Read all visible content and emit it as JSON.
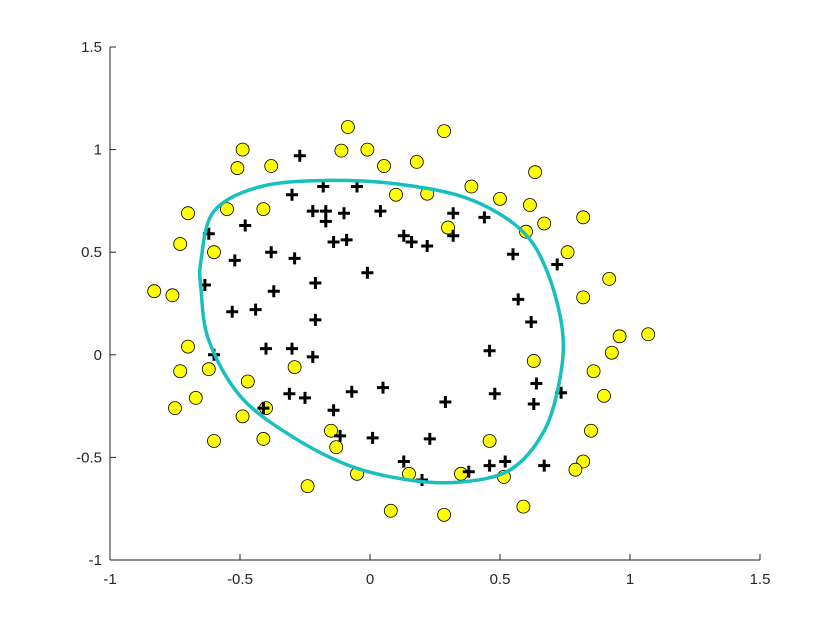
{
  "chart_data": {
    "type": "scatter",
    "title": "",
    "xlabel": "",
    "ylabel": "",
    "xlim": [
      -1,
      1.5
    ],
    "ylim": [
      -1,
      1.5
    ],
    "grid": false,
    "x_ticks": [
      "-1",
      "-0.5",
      "0",
      "0.5",
      "1",
      "1.5"
    ],
    "y_ticks": [
      "-1",
      "-0.5",
      "0",
      "0.5",
      "1",
      "1.5"
    ],
    "colors": {
      "circle_fill": "#ffff00",
      "plus": "#000000",
      "boundary": "#17bfbf",
      "axis": "#262626"
    },
    "series": [
      {
        "marker": "circle",
        "points": [
          [
            -0.085,
            1.11
          ],
          [
            0.285,
            1.09
          ],
          [
            -0.49,
            1.0
          ],
          [
            -0.11,
            0.995
          ],
          [
            -0.01,
            1.0
          ],
          [
            -0.51,
            0.91
          ],
          [
            -0.38,
            0.92
          ],
          [
            0.054,
            0.92
          ],
          [
            0.18,
            0.94
          ],
          [
            0.635,
            0.89
          ],
          [
            0.39,
            0.82
          ],
          [
            0.5,
            0.76
          ],
          [
            0.1,
            0.78
          ],
          [
            0.22,
            0.785
          ],
          [
            -0.7,
            0.69
          ],
          [
            -0.55,
            0.71
          ],
          [
            -0.41,
            0.71
          ],
          [
            0.615,
            0.73
          ],
          [
            0.67,
            0.64
          ],
          [
            0.82,
            0.67
          ],
          [
            0.6,
            0.6
          ],
          [
            0.3,
            0.62
          ],
          [
            -0.73,
            0.54
          ],
          [
            -0.6,
            0.5
          ],
          [
            0.76,
            0.5
          ],
          [
            -0.83,
            0.31
          ],
          [
            -0.76,
            0.29
          ],
          [
            0.92,
            0.37
          ],
          [
            0.82,
            0.28
          ],
          [
            1.07,
            0.1
          ],
          [
            0.96,
            0.09
          ],
          [
            0.93,
            0.01
          ],
          [
            -0.7,
            0.04
          ],
          [
            0.63,
            -0.03
          ],
          [
            -0.73,
            -0.08
          ],
          [
            -0.62,
            -0.07
          ],
          [
            -0.29,
            -0.06
          ],
          [
            0.86,
            -0.08
          ],
          [
            -0.47,
            -0.13
          ],
          [
            -0.67,
            -0.21
          ],
          [
            0.9,
            -0.2
          ],
          [
            -0.75,
            -0.26
          ],
          [
            -0.4,
            -0.26
          ],
          [
            -0.49,
            -0.3
          ],
          [
            0.85,
            -0.37
          ],
          [
            -0.15,
            -0.37
          ],
          [
            -0.6,
            -0.42
          ],
          [
            -0.41,
            -0.41
          ],
          [
            0.46,
            -0.42
          ],
          [
            -0.13,
            -0.45
          ],
          [
            0.82,
            -0.52
          ],
          [
            0.79,
            -0.56
          ],
          [
            -0.05,
            -0.58
          ],
          [
            0.15,
            -0.58
          ],
          [
            0.35,
            -0.58
          ],
          [
            0.515,
            -0.595
          ],
          [
            -0.24,
            -0.64
          ],
          [
            0.08,
            -0.76
          ],
          [
            0.285,
            -0.78
          ],
          [
            0.59,
            -0.74
          ]
        ]
      },
      {
        "marker": "plus",
        "points": [
          [
            -0.27,
            0.97
          ],
          [
            -0.18,
            0.82
          ],
          [
            -0.05,
            0.82
          ],
          [
            -0.3,
            0.78
          ],
          [
            -0.22,
            0.7
          ],
          [
            -0.17,
            0.7
          ],
          [
            -0.1,
            0.69
          ],
          [
            0.04,
            0.7
          ],
          [
            -0.17,
            0.65
          ],
          [
            0.32,
            0.69
          ],
          [
            0.44,
            0.67
          ],
          [
            -0.48,
            0.63
          ],
          [
            -0.62,
            0.59
          ],
          [
            -0.14,
            0.55
          ],
          [
            -0.09,
            0.56
          ],
          [
            0.13,
            0.58
          ],
          [
            0.16,
            0.55
          ],
          [
            0.22,
            0.53
          ],
          [
            0.32,
            0.58
          ],
          [
            -0.38,
            0.5
          ],
          [
            -0.52,
            0.46
          ],
          [
            -0.29,
            0.47
          ],
          [
            0.55,
            0.49
          ],
          [
            0.72,
            0.44
          ],
          [
            -0.01,
            0.4
          ],
          [
            -0.21,
            0.35
          ],
          [
            -0.635,
            0.34
          ],
          [
            -0.37,
            0.31
          ],
          [
            0.57,
            0.27
          ],
          [
            -0.53,
            0.21
          ],
          [
            -0.44,
            0.22
          ],
          [
            -0.21,
            0.17
          ],
          [
            0.62,
            0.16
          ],
          [
            -0.4,
            0.03
          ],
          [
            -0.3,
            0.03
          ],
          [
            -0.6,
            0.0
          ],
          [
            -0.22,
            -0.01
          ],
          [
            0.46,
            0.02
          ],
          [
            0.64,
            -0.14
          ],
          [
            0.05,
            -0.16
          ],
          [
            -0.07,
            -0.18
          ],
          [
            0.48,
            -0.19
          ],
          [
            -0.31,
            -0.19
          ],
          [
            -0.25,
            -0.21
          ],
          [
            0.735,
            -0.185
          ],
          [
            0.29,
            -0.23
          ],
          [
            0.63,
            -0.24
          ],
          [
            -0.14,
            -0.27
          ],
          [
            -0.41,
            -0.26
          ],
          [
            -0.115,
            -0.395
          ],
          [
            0.01,
            -0.405
          ],
          [
            0.23,
            -0.41
          ],
          [
            0.13,
            -0.52
          ],
          [
            0.46,
            -0.54
          ],
          [
            0.52,
            -0.52
          ],
          [
            0.67,
            -0.54
          ],
          [
            0.38,
            -0.57
          ],
          [
            0.2,
            -0.61
          ]
        ]
      },
      {
        "marker": "line",
        "closed": true,
        "points": [
          [
            -0.65,
            0.46
          ],
          [
            -0.6,
            0.7
          ],
          [
            -0.42,
            0.82
          ],
          [
            -0.15,
            0.85
          ],
          [
            0.12,
            0.83
          ],
          [
            0.38,
            0.76
          ],
          [
            0.58,
            0.61
          ],
          [
            0.68,
            0.41
          ],
          [
            0.74,
            0.12
          ],
          [
            0.73,
            -0.12
          ],
          [
            0.67,
            -0.37
          ],
          [
            0.54,
            -0.56
          ],
          [
            0.35,
            -0.62
          ],
          [
            0.15,
            -0.61
          ],
          [
            -0.08,
            -0.54
          ],
          [
            -0.31,
            -0.39
          ],
          [
            -0.5,
            -0.2
          ],
          [
            -0.62,
            0.07
          ],
          [
            -0.65,
            0.32
          ]
        ]
      }
    ]
  }
}
